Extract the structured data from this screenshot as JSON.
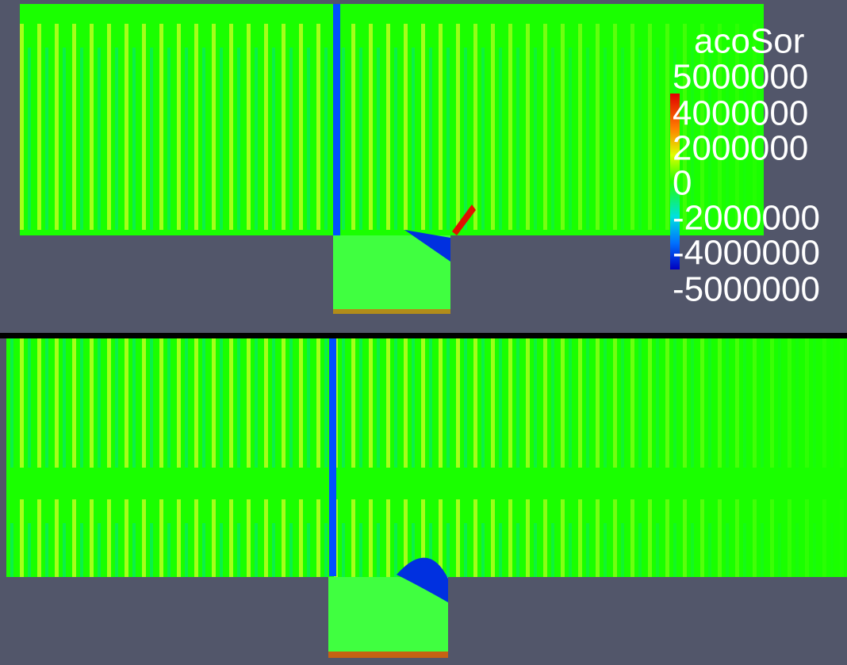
{
  "legend": {
    "title": "acoSor",
    "labels": [
      "5000000",
      "4000000",
      "2000000",
      "0",
      "-2000000",
      "-4000000",
      "-5000000"
    ]
  }
}
